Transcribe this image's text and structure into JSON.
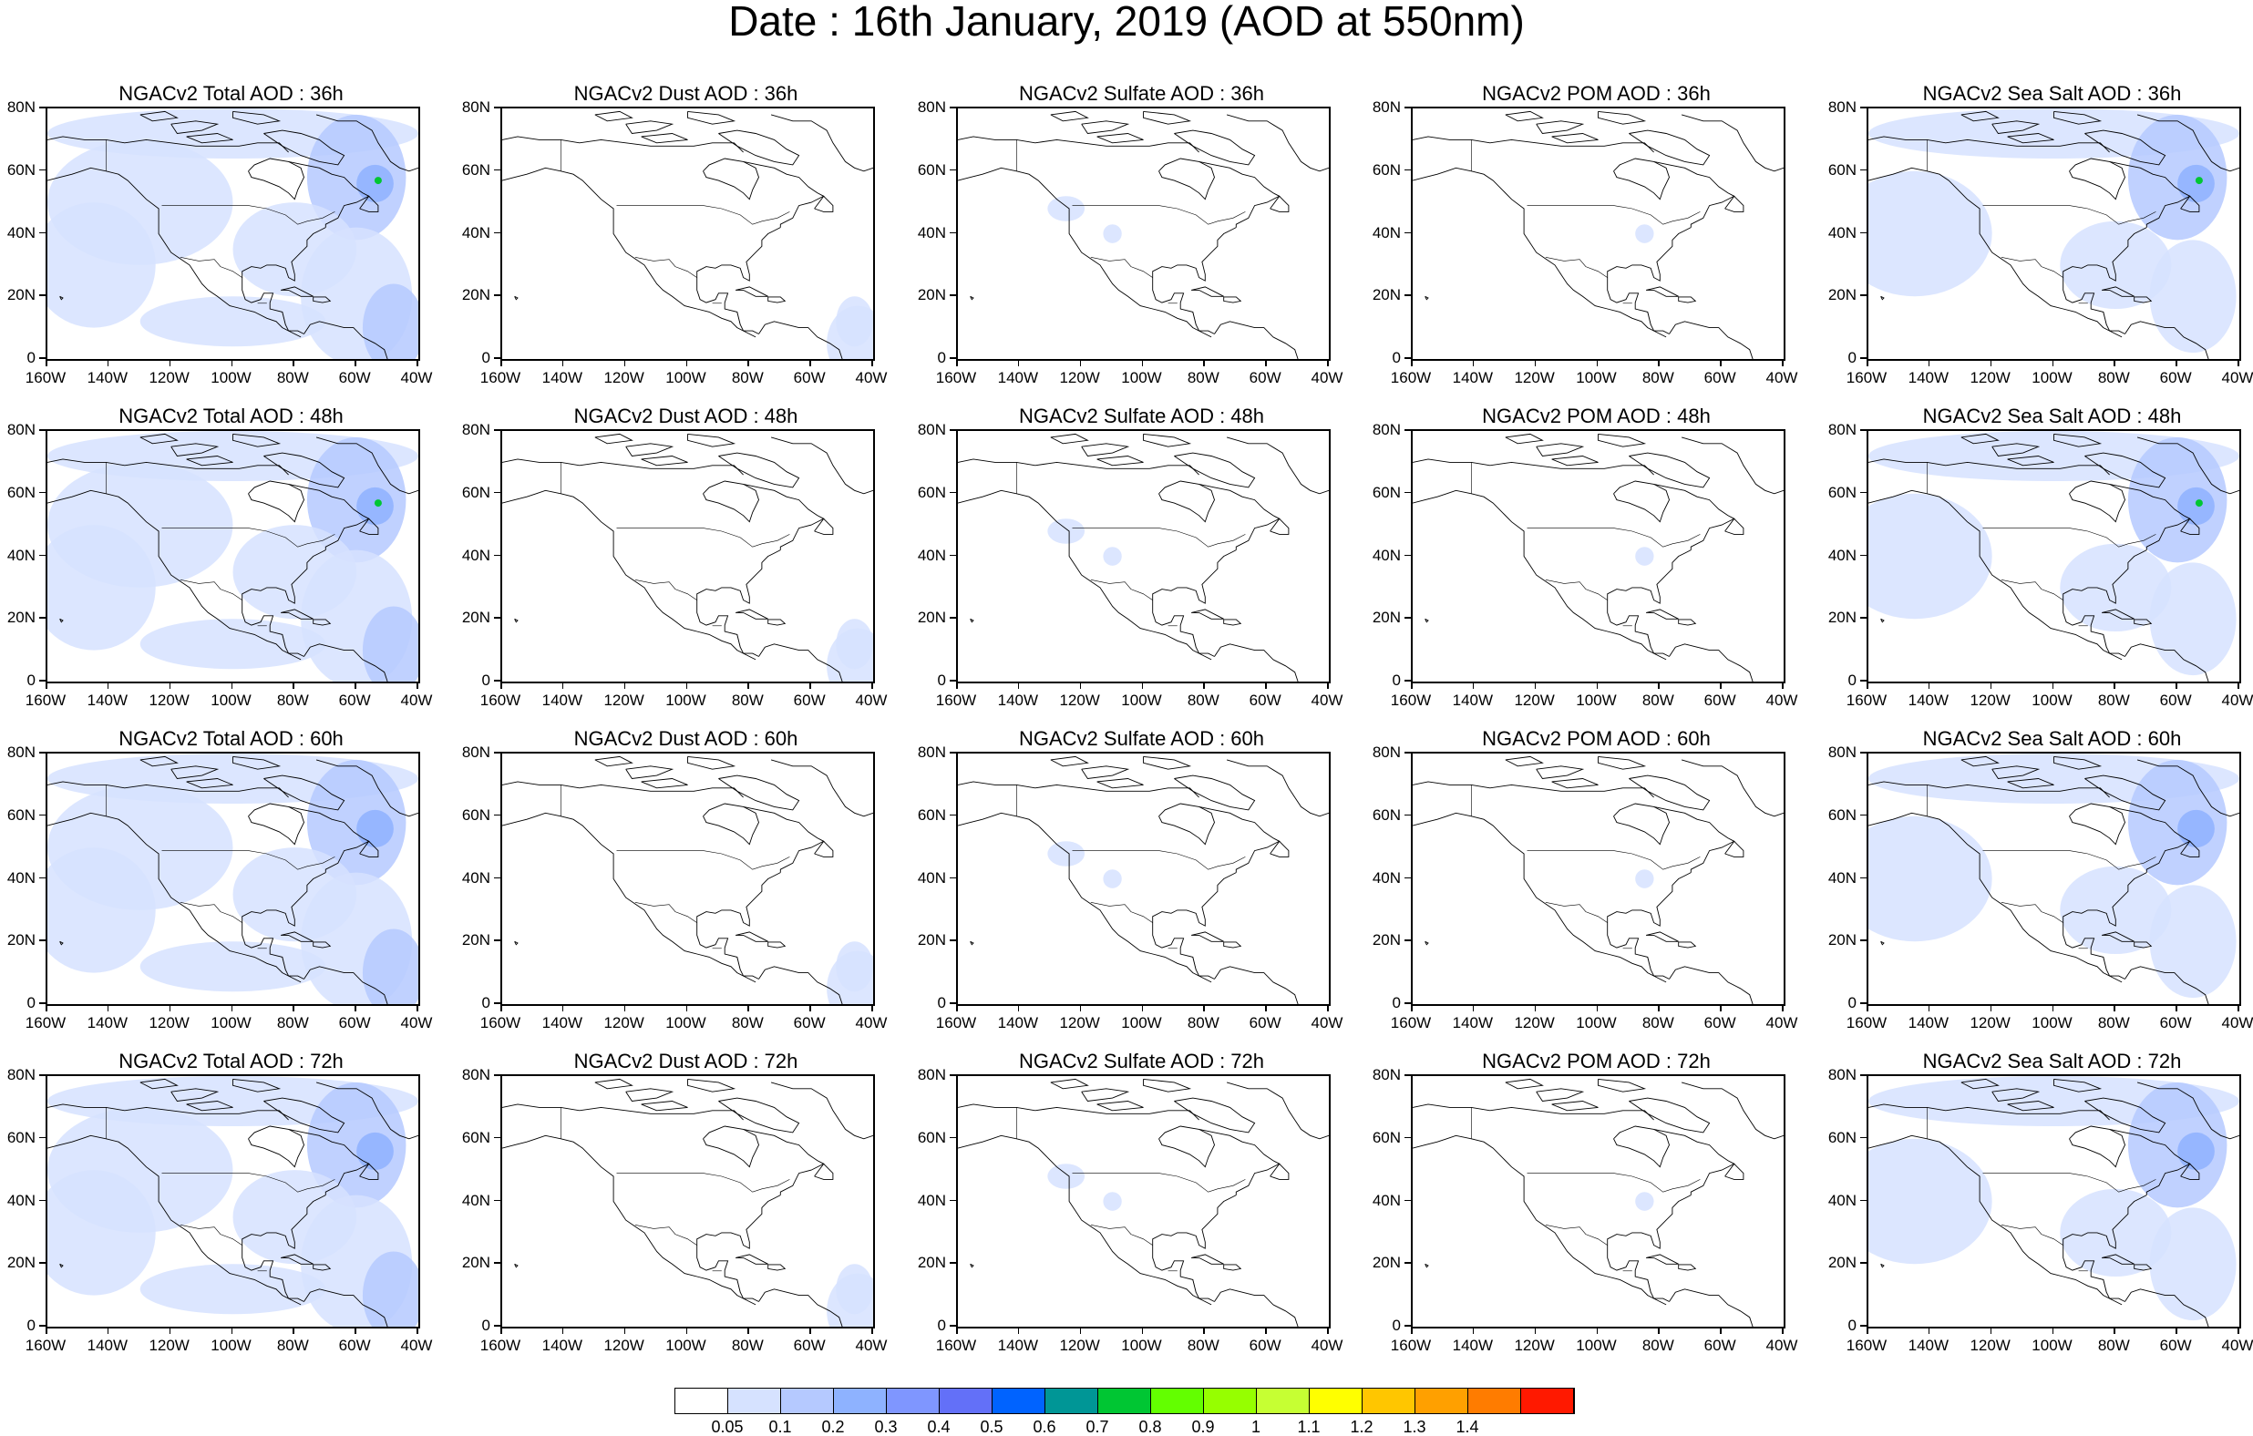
{
  "title": "Date : 16th January, 2019 (AOD at 550nm)",
  "axes": {
    "y_ticks": [
      "80N",
      "60N",
      "40N",
      "20N",
      "0"
    ],
    "x_ticks": [
      "160W",
      "140W",
      "120W",
      "100W",
      "80W",
      "60W",
      "40W"
    ]
  },
  "panels": [
    {
      "title": "NGACv2 Total AOD : 36h",
      "field": "total",
      "hour": 36
    },
    {
      "title": "NGACv2 Dust AOD : 36h",
      "field": "dust",
      "hour": 36
    },
    {
      "title": "NGACv2 Sulfate AOD : 36h",
      "field": "sulfate",
      "hour": 36
    },
    {
      "title": "NGACv2 POM AOD : 36h",
      "field": "pom",
      "hour": 36
    },
    {
      "title": "NGACv2 Sea Salt AOD : 36h",
      "field": "seasalt",
      "hour": 36
    },
    {
      "title": "NGACv2 Total AOD : 48h",
      "field": "total",
      "hour": 48
    },
    {
      "title": "NGACv2 Dust AOD : 48h",
      "field": "dust",
      "hour": 48
    },
    {
      "title": "NGACv2 Sulfate AOD : 48h",
      "field": "sulfate",
      "hour": 48
    },
    {
      "title": "NGACv2 POM AOD : 48h",
      "field": "pom",
      "hour": 48
    },
    {
      "title": "NGACv2 Sea Salt AOD : 48h",
      "field": "seasalt",
      "hour": 48
    },
    {
      "title": "NGACv2 Total AOD : 60h",
      "field": "total",
      "hour": 60
    },
    {
      "title": "NGACv2 Dust AOD : 60h",
      "field": "dust",
      "hour": 60
    },
    {
      "title": "NGACv2 Sulfate AOD : 60h",
      "field": "sulfate",
      "hour": 60
    },
    {
      "title": "NGACv2 POM AOD : 60h",
      "field": "pom",
      "hour": 60
    },
    {
      "title": "NGACv2 Sea Salt AOD : 60h",
      "field": "seasalt",
      "hour": 60
    },
    {
      "title": "NGACv2 Total AOD : 72h",
      "field": "total",
      "hour": 72
    },
    {
      "title": "NGACv2 Dust AOD : 72h",
      "field": "dust",
      "hour": 72
    },
    {
      "title": "NGACv2 Sulfate AOD : 72h",
      "field": "sulfate",
      "hour": 72
    },
    {
      "title": "NGACv2 POM AOD : 72h",
      "field": "pom",
      "hour": 72
    },
    {
      "title": "NGACv2 Sea Salt  AOD : 72h",
      "field": "seasalt",
      "hour": 72
    }
  ],
  "colorbar": {
    "labels": [
      "0.05",
      "0.1",
      "0.2",
      "0.3",
      "0.4",
      "0.5",
      "0.6",
      "0.7",
      "0.8",
      "0.9",
      "1",
      "1.1",
      "1.2",
      "1.3",
      "1.4"
    ],
    "colors": [
      "#ffffff",
      "#d6e2ff",
      "#b5c9ff",
      "#8eb2ff",
      "#7f96ff",
      "#6370f8",
      "#0063ff",
      "#009696",
      "#00c633",
      "#63ff00",
      "#96ff00",
      "#c6ff33",
      "#ffff00",
      "#ffc600",
      "#ffa000",
      "#ff7c00",
      "#ff1900"
    ]
  },
  "colors": {
    "land_outline": "#000000",
    "light_aod": "#d6e2ff",
    "medium_aod": "#b5c9ff",
    "high_aod": "#8eb2ff",
    "peak_aod": "#00c633"
  }
}
